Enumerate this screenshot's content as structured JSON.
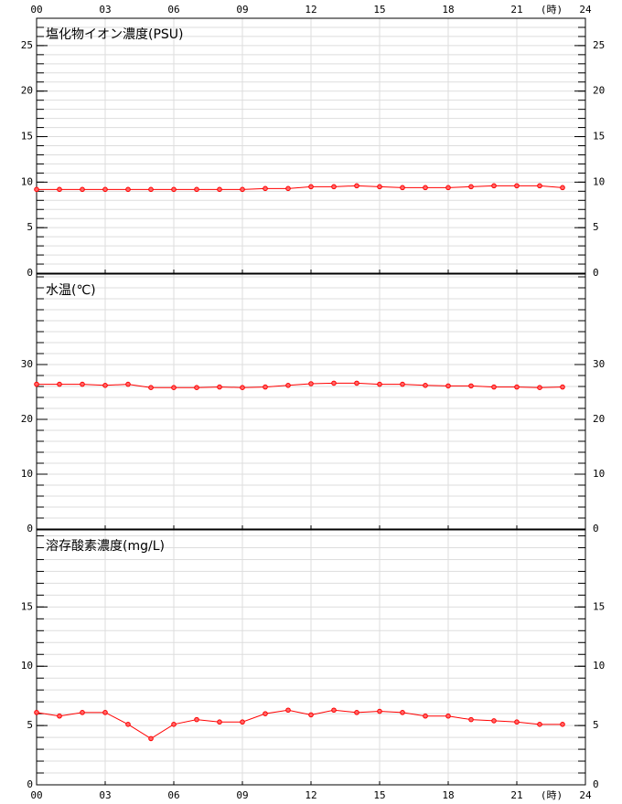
{
  "chart_data": [
    {
      "type": "line",
      "title": "塩化物イオン濃度(PSU)",
      "x_label": "(時)",
      "x": [
        0,
        1,
        2,
        3,
        4,
        5,
        6,
        7,
        8,
        9,
        10,
        11,
        12,
        13,
        14,
        15,
        16,
        17,
        18,
        19,
        20,
        21,
        22,
        23
      ],
      "xlim": [
        0,
        24
      ],
      "xticks": [
        {
          "value": 0,
          "label": "00"
        },
        {
          "value": 3,
          "label": "03"
        },
        {
          "value": 6,
          "label": "06"
        },
        {
          "value": 9,
          "label": "09"
        },
        12,
        15,
        18,
        21,
        24
      ],
      "ylim": [
        0,
        28
      ],
      "yticks": [
        0,
        5,
        10,
        15,
        20,
        25
      ],
      "minor_ystep": 1,
      "grid": true,
      "series": [
        {
          "color": "#ff0000",
          "values": [
            9.2,
            9.2,
            9.2,
            9.2,
            9.2,
            9.2,
            9.2,
            9.2,
            9.2,
            9.2,
            9.3,
            9.3,
            9.5,
            9.5,
            9.6,
            9.5,
            9.4,
            9.4,
            9.4,
            9.5,
            9.6,
            9.6,
            9.6,
            9.4
          ]
        }
      ]
    },
    {
      "type": "line",
      "title": "水温(℃)",
      "x": [
        0,
        1,
        2,
        3,
        4,
        5,
        6,
        7,
        8,
        9,
        10,
        11,
        12,
        13,
        14,
        15,
        16,
        17,
        18,
        19,
        20,
        21,
        22,
        23
      ],
      "xlim": [
        0,
        24
      ],
      "xticks": [
        0,
        3,
        6,
        9,
        12,
        15,
        18,
        21,
        24
      ],
      "ylim": [
        0,
        46.5
      ],
      "yticks": [
        0,
        10,
        20,
        30
      ],
      "minor_ystep": 2,
      "grid": true,
      "series": [
        {
          "color": "#ff0000",
          "values": [
            26.4,
            26.4,
            26.4,
            26.2,
            26.4,
            25.8,
            25.8,
            25.8,
            25.9,
            25.8,
            25.9,
            26.2,
            26.5,
            26.6,
            26.6,
            26.4,
            26.4,
            26.2,
            26.1,
            26.1,
            25.9,
            25.9,
            25.8,
            25.9
          ]
        }
      ]
    },
    {
      "type": "line",
      "title": "溶存酸素濃度(mg/L)",
      "x_label": "(時)",
      "x": [
        0,
        1,
        2,
        3,
        4,
        5,
        6,
        7,
        8,
        9,
        10,
        11,
        12,
        13,
        14,
        15,
        16,
        17,
        18,
        19,
        20,
        21,
        22,
        23
      ],
      "xlim": [
        0,
        24
      ],
      "xticks": [
        {
          "value": 0,
          "label": "00"
        },
        {
          "value": 3,
          "label": "03"
        },
        {
          "value": 6,
          "label": "06"
        },
        {
          "value": 9,
          "label": "09"
        },
        12,
        15,
        18,
        21,
        24
      ],
      "ylim": [
        0,
        21.5
      ],
      "yticks": [
        0,
        5,
        10,
        15
      ],
      "minor_ystep": 1,
      "grid": true,
      "series": [
        {
          "color": "#ff0000",
          "values": [
            6.1,
            5.8,
            6.1,
            6.1,
            5.1,
            3.9,
            5.1,
            5.5,
            5.3,
            5.3,
            6.0,
            6.3,
            5.9,
            6.3,
            6.1,
            6.2,
            6.1,
            5.8,
            5.8,
            5.5,
            5.4,
            5.3,
            5.1,
            5.1
          ]
        }
      ]
    }
  ]
}
